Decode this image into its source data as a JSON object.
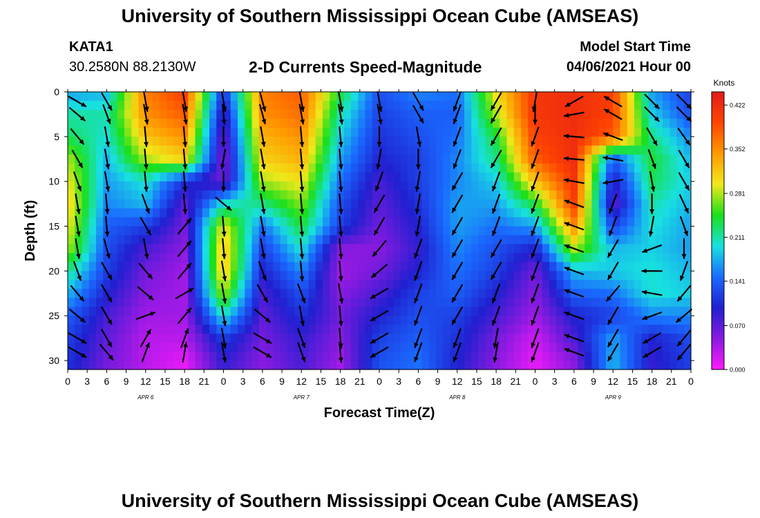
{
  "header": {
    "title": "University of Southern Mississippi Ocean Cube (AMSEAS)",
    "station": "KATA1",
    "coords": "30.2580N  88.2130W",
    "chart_title": "2-D Currents Speed-Magnitude",
    "model_label": "Model Start Time",
    "model_date": "04/06/2021 Hour 00"
  },
  "footer": {
    "title": "University of Southern Mississippi Ocean Cube (AMSEAS)"
  },
  "chart_data": {
    "type": "heatmap",
    "title": "2-D Currents Speed-Magnitude",
    "xlabel": "Forecast Time(Z)",
    "ylabel": "Depth (ft)",
    "x_ticks": [
      "0",
      "3",
      "6",
      "9",
      "12",
      "15",
      "18",
      "21",
      "0",
      "3",
      "6",
      "9",
      "12",
      "15",
      "18",
      "21",
      "0",
      "3",
      "6",
      "9",
      "12",
      "15",
      "18",
      "21",
      "0",
      "3",
      "6",
      "9",
      "12",
      "15",
      "18",
      "21",
      "0"
    ],
    "day_labels": [
      "APR 6",
      "APR 7",
      "APR 8",
      "APR 9"
    ],
    "y_ticks": [
      0,
      5,
      10,
      15,
      20,
      25,
      30
    ],
    "ylim": [
      0,
      31
    ],
    "colorbar": {
      "unit": "Knots",
      "ticks": [
        "0.422",
        "0.352",
        "0.281",
        "0.211",
        "0.141",
        "0.070",
        "0.000"
      ],
      "colors": [
        "#e21a1a",
        "#ff4500",
        "#ff9a00",
        "#f0e81a",
        "#1ae01a",
        "#18e0e0",
        "#1a6aff",
        "#2020d0",
        "#8a1ae0",
        "#ff1aff"
      ]
    },
    "depths_ft": [
      0,
      2.5,
      5,
      7.5,
      10,
      12.5,
      15,
      17.5,
      20,
      22.5,
      25,
      27.5,
      30
    ],
    "time_hours": [
      0,
      6,
      12,
      18,
      24,
      30,
      36,
      42,
      48,
      54,
      60,
      66,
      72,
      78,
      84,
      90,
      96
    ],
    "speed_knots": [
      [
        0.17,
        0.18,
        0.36,
        0.4,
        0.11,
        0.36,
        0.38,
        0.24,
        0.13,
        0.16,
        0.15,
        0.3,
        0.41,
        0.42,
        0.4,
        0.17,
        0.12
      ],
      [
        0.21,
        0.21,
        0.35,
        0.38,
        0.08,
        0.35,
        0.37,
        0.21,
        0.12,
        0.14,
        0.14,
        0.28,
        0.41,
        0.42,
        0.4,
        0.19,
        0.13
      ],
      [
        0.23,
        0.2,
        0.32,
        0.35,
        0.06,
        0.33,
        0.35,
        0.19,
        0.11,
        0.13,
        0.15,
        0.24,
        0.4,
        0.42,
        0.38,
        0.22,
        0.16
      ],
      [
        0.28,
        0.18,
        0.28,
        0.31,
        0.05,
        0.31,
        0.33,
        0.17,
        0.1,
        0.12,
        0.16,
        0.22,
        0.38,
        0.42,
        0.14,
        0.24,
        0.18
      ],
      [
        0.3,
        0.17,
        0.2,
        0.11,
        0.06,
        0.28,
        0.3,
        0.15,
        0.08,
        0.12,
        0.16,
        0.19,
        0.32,
        0.41,
        0.09,
        0.23,
        0.19
      ],
      [
        0.31,
        0.16,
        0.18,
        0.07,
        0.2,
        0.22,
        0.27,
        0.13,
        0.07,
        0.11,
        0.17,
        0.17,
        0.24,
        0.4,
        0.07,
        0.21,
        0.18
      ],
      [
        0.3,
        0.14,
        0.12,
        0.06,
        0.3,
        0.15,
        0.24,
        0.12,
        0.06,
        0.1,
        0.17,
        0.15,
        0.17,
        0.35,
        0.12,
        0.2,
        0.17
      ],
      [
        0.28,
        0.13,
        0.08,
        0.05,
        0.32,
        0.12,
        0.2,
        0.05,
        0.05,
        0.09,
        0.16,
        0.13,
        0.1,
        0.28,
        0.18,
        0.19,
        0.17
      ],
      [
        0.22,
        0.12,
        0.06,
        0.04,
        0.32,
        0.1,
        0.16,
        0.04,
        0.06,
        0.1,
        0.15,
        0.12,
        0.06,
        0.18,
        0.19,
        0.2,
        0.18
      ],
      [
        0.18,
        0.1,
        0.05,
        0.04,
        0.28,
        0.08,
        0.13,
        0.05,
        0.08,
        0.12,
        0.14,
        0.1,
        0.05,
        0.14,
        0.15,
        0.2,
        0.19
      ],
      [
        0.14,
        0.08,
        0.04,
        0.04,
        0.2,
        0.07,
        0.11,
        0.06,
        0.1,
        0.13,
        0.12,
        0.08,
        0.04,
        0.1,
        0.12,
        0.16,
        0.16
      ],
      [
        0.12,
        0.07,
        0.03,
        0.03,
        0.12,
        0.06,
        0.09,
        0.05,
        0.12,
        0.14,
        0.11,
        0.06,
        0.02,
        0.08,
        0.17,
        0.1,
        0.13
      ],
      [
        0.11,
        0.06,
        0.03,
        0.01,
        0.09,
        0.05,
        0.08,
        0.04,
        0.13,
        0.15,
        0.1,
        0.05,
        0.01,
        0.05,
        0.18,
        0.09,
        0.12
      ]
    ],
    "direction_deg": [
      [
        120,
        150,
        170,
        170,
        170,
        165,
        170,
        170,
        170,
        150,
        200,
        210,
        190,
        240,
        300,
        135,
        135
      ],
      [
        130,
        160,
        170,
        170,
        175,
        165,
        170,
        170,
        170,
        150,
        200,
        210,
        180,
        260,
        300,
        135,
        135
      ],
      [
        140,
        170,
        175,
        175,
        180,
        170,
        175,
        175,
        180,
        170,
        200,
        210,
        200,
        275,
        290,
        150,
        145
      ],
      [
        150,
        170,
        175,
        175,
        190,
        170,
        175,
        175,
        190,
        180,
        200,
        210,
        200,
        275,
        280,
        160,
        150
      ],
      [
        160,
        170,
        175,
        175,
        180,
        170,
        175,
        175,
        200,
        190,
        210,
        200,
        200,
        280,
        260,
        170,
        150
      ],
      [
        170,
        175,
        160,
        175,
        130,
        170,
        175,
        175,
        210,
        190,
        210,
        200,
        200,
        290,
        200,
        180,
        155
      ],
      [
        170,
        175,
        150,
        40,
        175,
        170,
        175,
        175,
        210,
        190,
        210,
        200,
        200,
        290,
        200,
        190,
        160
      ],
      [
        170,
        165,
        170,
        40,
        175,
        170,
        175,
        175,
        220,
        200,
        210,
        210,
        200,
        290,
        210,
        250,
        180
      ],
      [
        160,
        150,
        140,
        40,
        170,
        160,
        175,
        175,
        230,
        200,
        210,
        210,
        200,
        290,
        210,
        270,
        200
      ],
      [
        140,
        150,
        130,
        60,
        170,
        150,
        160,
        170,
        240,
        200,
        210,
        200,
        200,
        290,
        220,
        280,
        220
      ],
      [
        130,
        150,
        70,
        40,
        170,
        130,
        170,
        175,
        240,
        200,
        210,
        200,
        200,
        290,
        210,
        250,
        230
      ],
      [
        120,
        150,
        30,
        20,
        170,
        120,
        160,
        175,
        240,
        200,
        200,
        190,
        200,
        290,
        210,
        240,
        220
      ],
      [
        120,
        140,
        20,
        10,
        170,
        120,
        160,
        175,
        240,
        200,
        200,
        190,
        200,
        290,
        210,
        240,
        220
      ]
    ]
  }
}
